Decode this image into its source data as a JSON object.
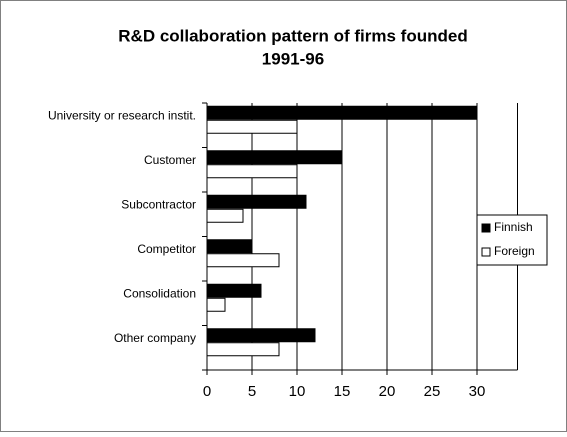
{
  "chart_data": {
    "type": "barh",
    "title": [
      "R&D collaboration pattern of firms founded",
      "1991-96"
    ],
    "categories": [
      "University or research instit.",
      "Customer",
      "Subcontractor",
      "Competitor",
      "Consolidation",
      "Other company"
    ],
    "series": [
      {
        "name": "Finnish",
        "color": "#000000",
        "values": [
          30,
          15,
          11,
          5,
          6,
          12
        ]
      },
      {
        "name": "Foreign",
        "color": "#ffffff",
        "values": [
          10,
          10,
          4,
          8,
          2,
          8
        ]
      }
    ],
    "xlim": [
      0,
      34.5
    ],
    "xticks": [
      0,
      5,
      10,
      15,
      20,
      25,
      30
    ],
    "grid": true,
    "legend": "right"
  }
}
